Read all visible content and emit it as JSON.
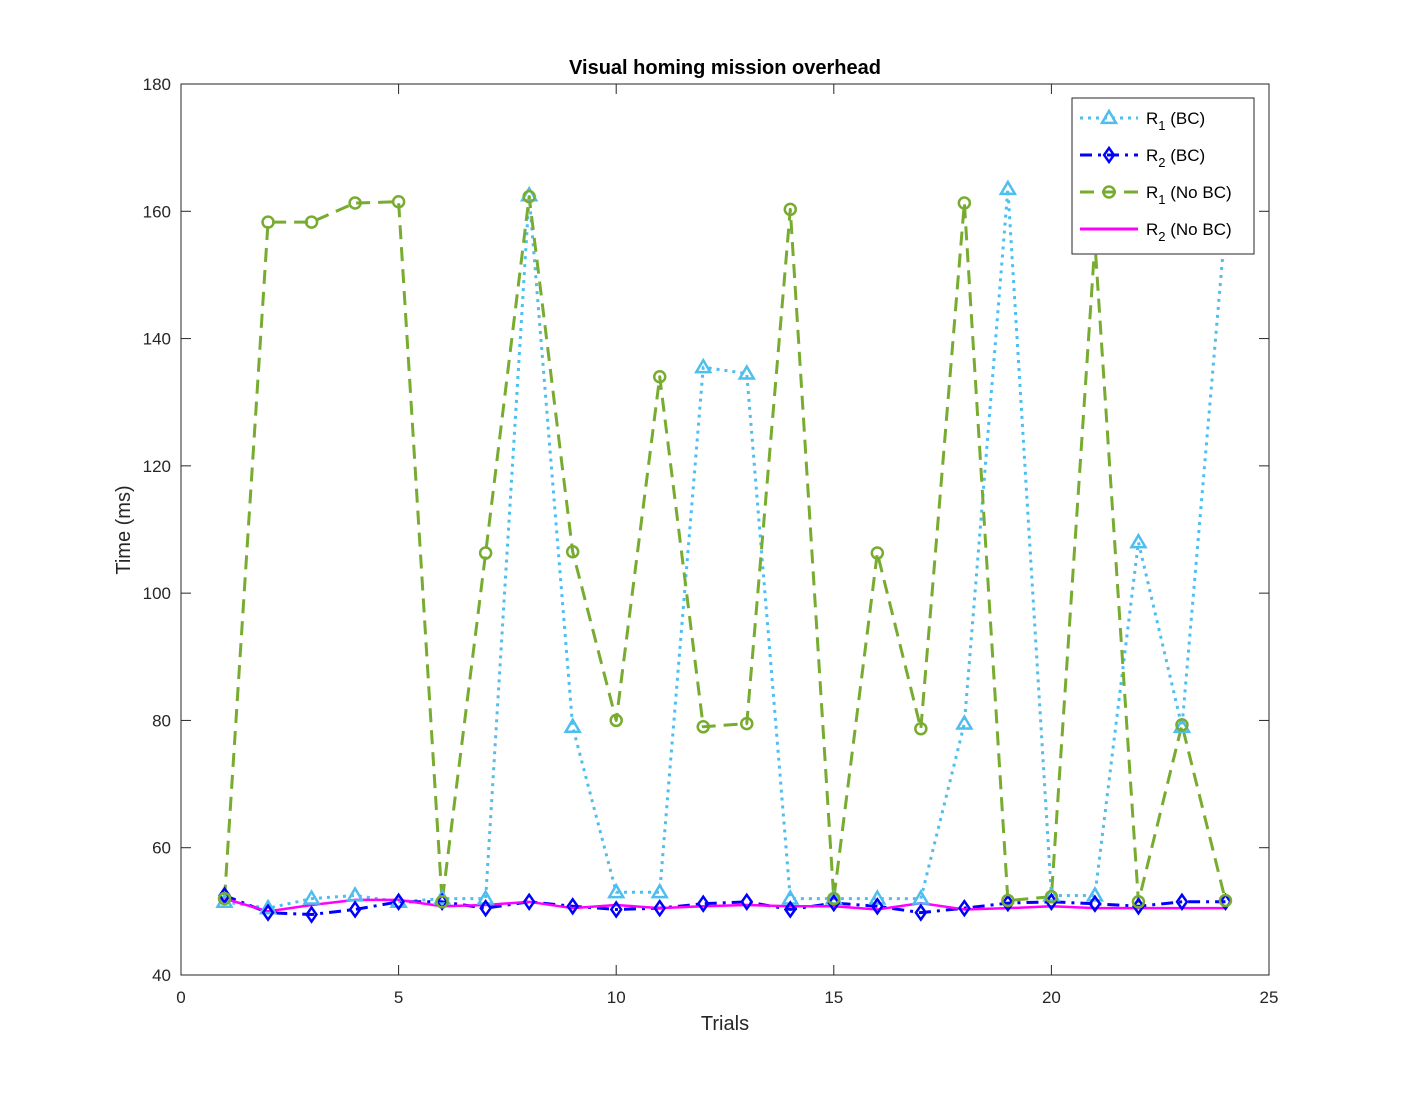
{
  "chart_data": {
    "type": "line",
    "title": "Visual homing mission overhead",
    "xlabel": "Trials",
    "ylabel": "Time (ms)",
    "xlim": [
      0,
      25
    ],
    "ylim": [
      40,
      180
    ],
    "xticks": [
      0,
      5,
      10,
      15,
      20,
      25
    ],
    "yticks": [
      40,
      60,
      80,
      100,
      120,
      140,
      160,
      180
    ],
    "grid": false,
    "legend_position": "top-right",
    "x": [
      1,
      2,
      3,
      4,
      5,
      6,
      7,
      8,
      9,
      10,
      11,
      12,
      13,
      14,
      15,
      16,
      17,
      18,
      19,
      20,
      21,
      22,
      23,
      24
    ],
    "series": [
      {
        "name": "R1 (BC)",
        "legend_main": "R",
        "legend_sub": "1",
        "legend_suffix": " (BC)",
        "color": "#4DBEEE",
        "line_style": "dotted",
        "marker": "triangle",
        "values": [
          51.5,
          50.5,
          52,
          52.5,
          51.5,
          52,
          52,
          162.5,
          79,
          53,
          53,
          135.5,
          134.5,
          52,
          52,
          52,
          52,
          79.5,
          163.5,
          52.5,
          52.5,
          108,
          79,
          158
        ]
      },
      {
        "name": "R2 (BC)",
        "legend_main": "R",
        "legend_sub": "2",
        "legend_suffix": " (BC)",
        "color": "#0000FF",
        "line_style": "dashdot",
        "marker": "diamond",
        "values": [
          52.5,
          49.8,
          49.5,
          50.3,
          51.5,
          51.5,
          50.5,
          51.5,
          50.8,
          50.3,
          50.5,
          51.2,
          51.5,
          50.3,
          51.3,
          50.8,
          49.8,
          50.5,
          51.3,
          51.5,
          51.2,
          50.8,
          51.5,
          51.5
        ]
      },
      {
        "name": "R1 (No BC)",
        "legend_main": "R",
        "legend_sub": "1",
        "legend_suffix": " (No BC)",
        "color": "#77AC30",
        "line_style": "dashed",
        "marker": "circle",
        "values": [
          52,
          158.3,
          158.3,
          161.3,
          161.5,
          51.5,
          106.3,
          162.3,
          106.5,
          80,
          134,
          79,
          79.5,
          160.3,
          52,
          106.3,
          78.7,
          161.3,
          51.7,
          52.3,
          155,
          51.5,
          79.3,
          51.7
        ]
      },
      {
        "name": "R2 (No BC)",
        "legend_main": "R",
        "legend_sub": "2",
        "legend_suffix": " (No BC)",
        "color": "#FF00FF",
        "line_style": "solid",
        "marker": "none",
        "values": [
          52,
          50,
          51,
          51.8,
          51.8,
          50.8,
          51,
          51.5,
          50.5,
          51,
          50.5,
          50.8,
          51,
          50.8,
          50.8,
          50.3,
          51.3,
          50.3,
          50.5,
          50.8,
          50.5,
          50.5,
          50.5,
          50.5
        ]
      }
    ]
  }
}
